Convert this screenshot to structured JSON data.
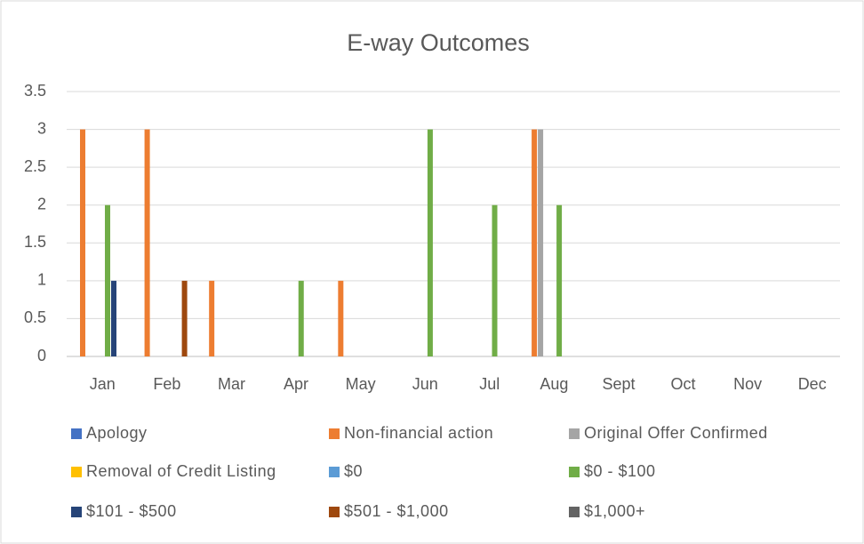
{
  "chart_data": {
    "type": "bar",
    "title": "E-way Outcomes",
    "categories": [
      "Jan",
      "Feb",
      "Mar",
      "Apr",
      "May",
      "Jun",
      "Jul",
      "Aug",
      "Sept",
      "Oct",
      "Nov",
      "Dec"
    ],
    "series": [
      {
        "name": "Apology",
        "color": "#4472c4",
        "values": [
          0,
          0,
          0,
          0,
          0,
          0,
          0,
          0,
          0,
          0,
          0,
          0
        ]
      },
      {
        "name": "Non-financial action",
        "color": "#ed7d31",
        "values": [
          3,
          3,
          1,
          0,
          1,
          0,
          0,
          3,
          0,
          0,
          0,
          0
        ]
      },
      {
        "name": "Original Offer Confirmed",
        "color": "#a5a5a5",
        "values": [
          0,
          0,
          0,
          0,
          0,
          0,
          0,
          3,
          0,
          0,
          0,
          0
        ]
      },
      {
        "name": "Removal of Credit Listing",
        "color": "#ffc000",
        "values": [
          0,
          0,
          0,
          0,
          0,
          0,
          0,
          0,
          0,
          0,
          0,
          0
        ]
      },
      {
        "name": "$0",
        "color": "#5b9bd5",
        "values": [
          0,
          0,
          0,
          0,
          0,
          0,
          0,
          0,
          0,
          0,
          0,
          0
        ]
      },
      {
        "name": "$0 - $100",
        "color": "#70ad47",
        "values": [
          2,
          0,
          0,
          1,
          0,
          3,
          2,
          2,
          0,
          0,
          0,
          0
        ]
      },
      {
        "name": "$101 - $500",
        "color": "#264478",
        "values": [
          1,
          0,
          0,
          0,
          0,
          0,
          0,
          0,
          0,
          0,
          0,
          0
        ]
      },
      {
        "name": "$501 - $1,000",
        "color": "#9e480e",
        "values": [
          0,
          1,
          0,
          0,
          0,
          0,
          0,
          0,
          0,
          0,
          0,
          0
        ]
      },
      {
        "name": "$1,000+",
        "color": "#636363",
        "values": [
          0,
          0,
          0,
          0,
          0,
          0,
          0,
          0,
          0,
          0,
          0,
          0
        ]
      }
    ],
    "ylim": [
      0,
      3.5
    ],
    "yticks": [
      0,
      0.5,
      1,
      1.5,
      2,
      2.5,
      3,
      3.5
    ],
    "grid": true,
    "legend": "bottom"
  }
}
